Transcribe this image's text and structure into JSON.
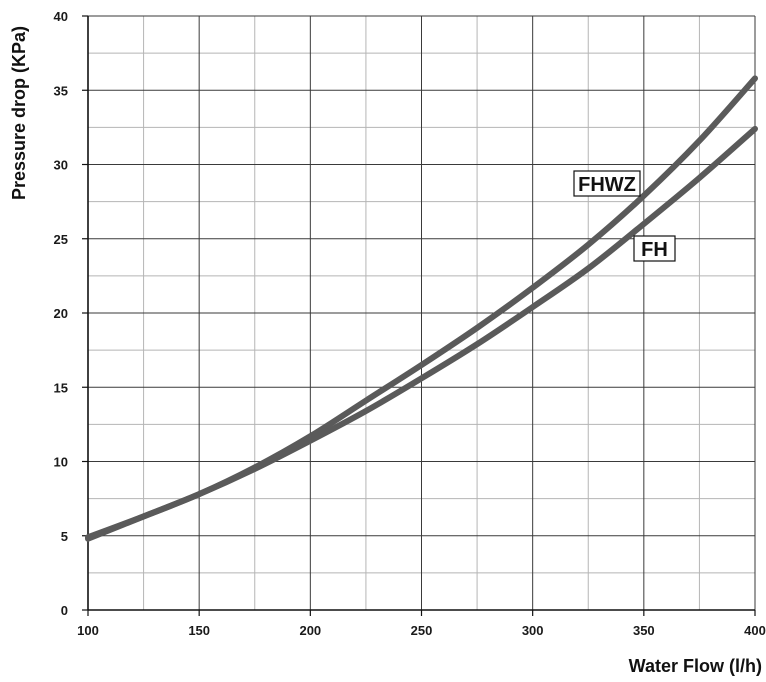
{
  "chart_data": {
    "type": "line",
    "xlabel": "Water Flow (l/h)",
    "ylabel": "Pressure drop (KPa)",
    "xlim": [
      100,
      400
    ],
    "ylim": [
      0,
      40
    ],
    "x_ticks": [
      "100",
      "150",
      "200",
      "250",
      "300",
      "350",
      "400"
    ],
    "y_ticks": [
      "0",
      "5",
      "10",
      "15",
      "20",
      "25",
      "30",
      "35",
      "40"
    ],
    "grid": true,
    "series": [
      {
        "name": "FHWZ",
        "color": "#5a5a5a",
        "x": [
          100,
          125,
          150,
          175,
          200,
          225,
          250,
          275,
          300,
          325,
          350,
          375,
          400
        ],
        "y": [
          4.9,
          6.3,
          7.8,
          9.6,
          11.7,
          14.1,
          16.5,
          19.0,
          21.7,
          24.6,
          27.9,
          31.6,
          35.8
        ]
      },
      {
        "name": "FH",
        "color": "#5a5a5a",
        "x": [
          100,
          125,
          150,
          175,
          200,
          225,
          250,
          275,
          300,
          325,
          350,
          375,
          400
        ],
        "y": [
          4.8,
          6.3,
          7.8,
          9.5,
          11.4,
          13.4,
          15.6,
          17.9,
          20.4,
          23.0,
          26.0,
          29.1,
          32.4
        ]
      }
    ]
  }
}
